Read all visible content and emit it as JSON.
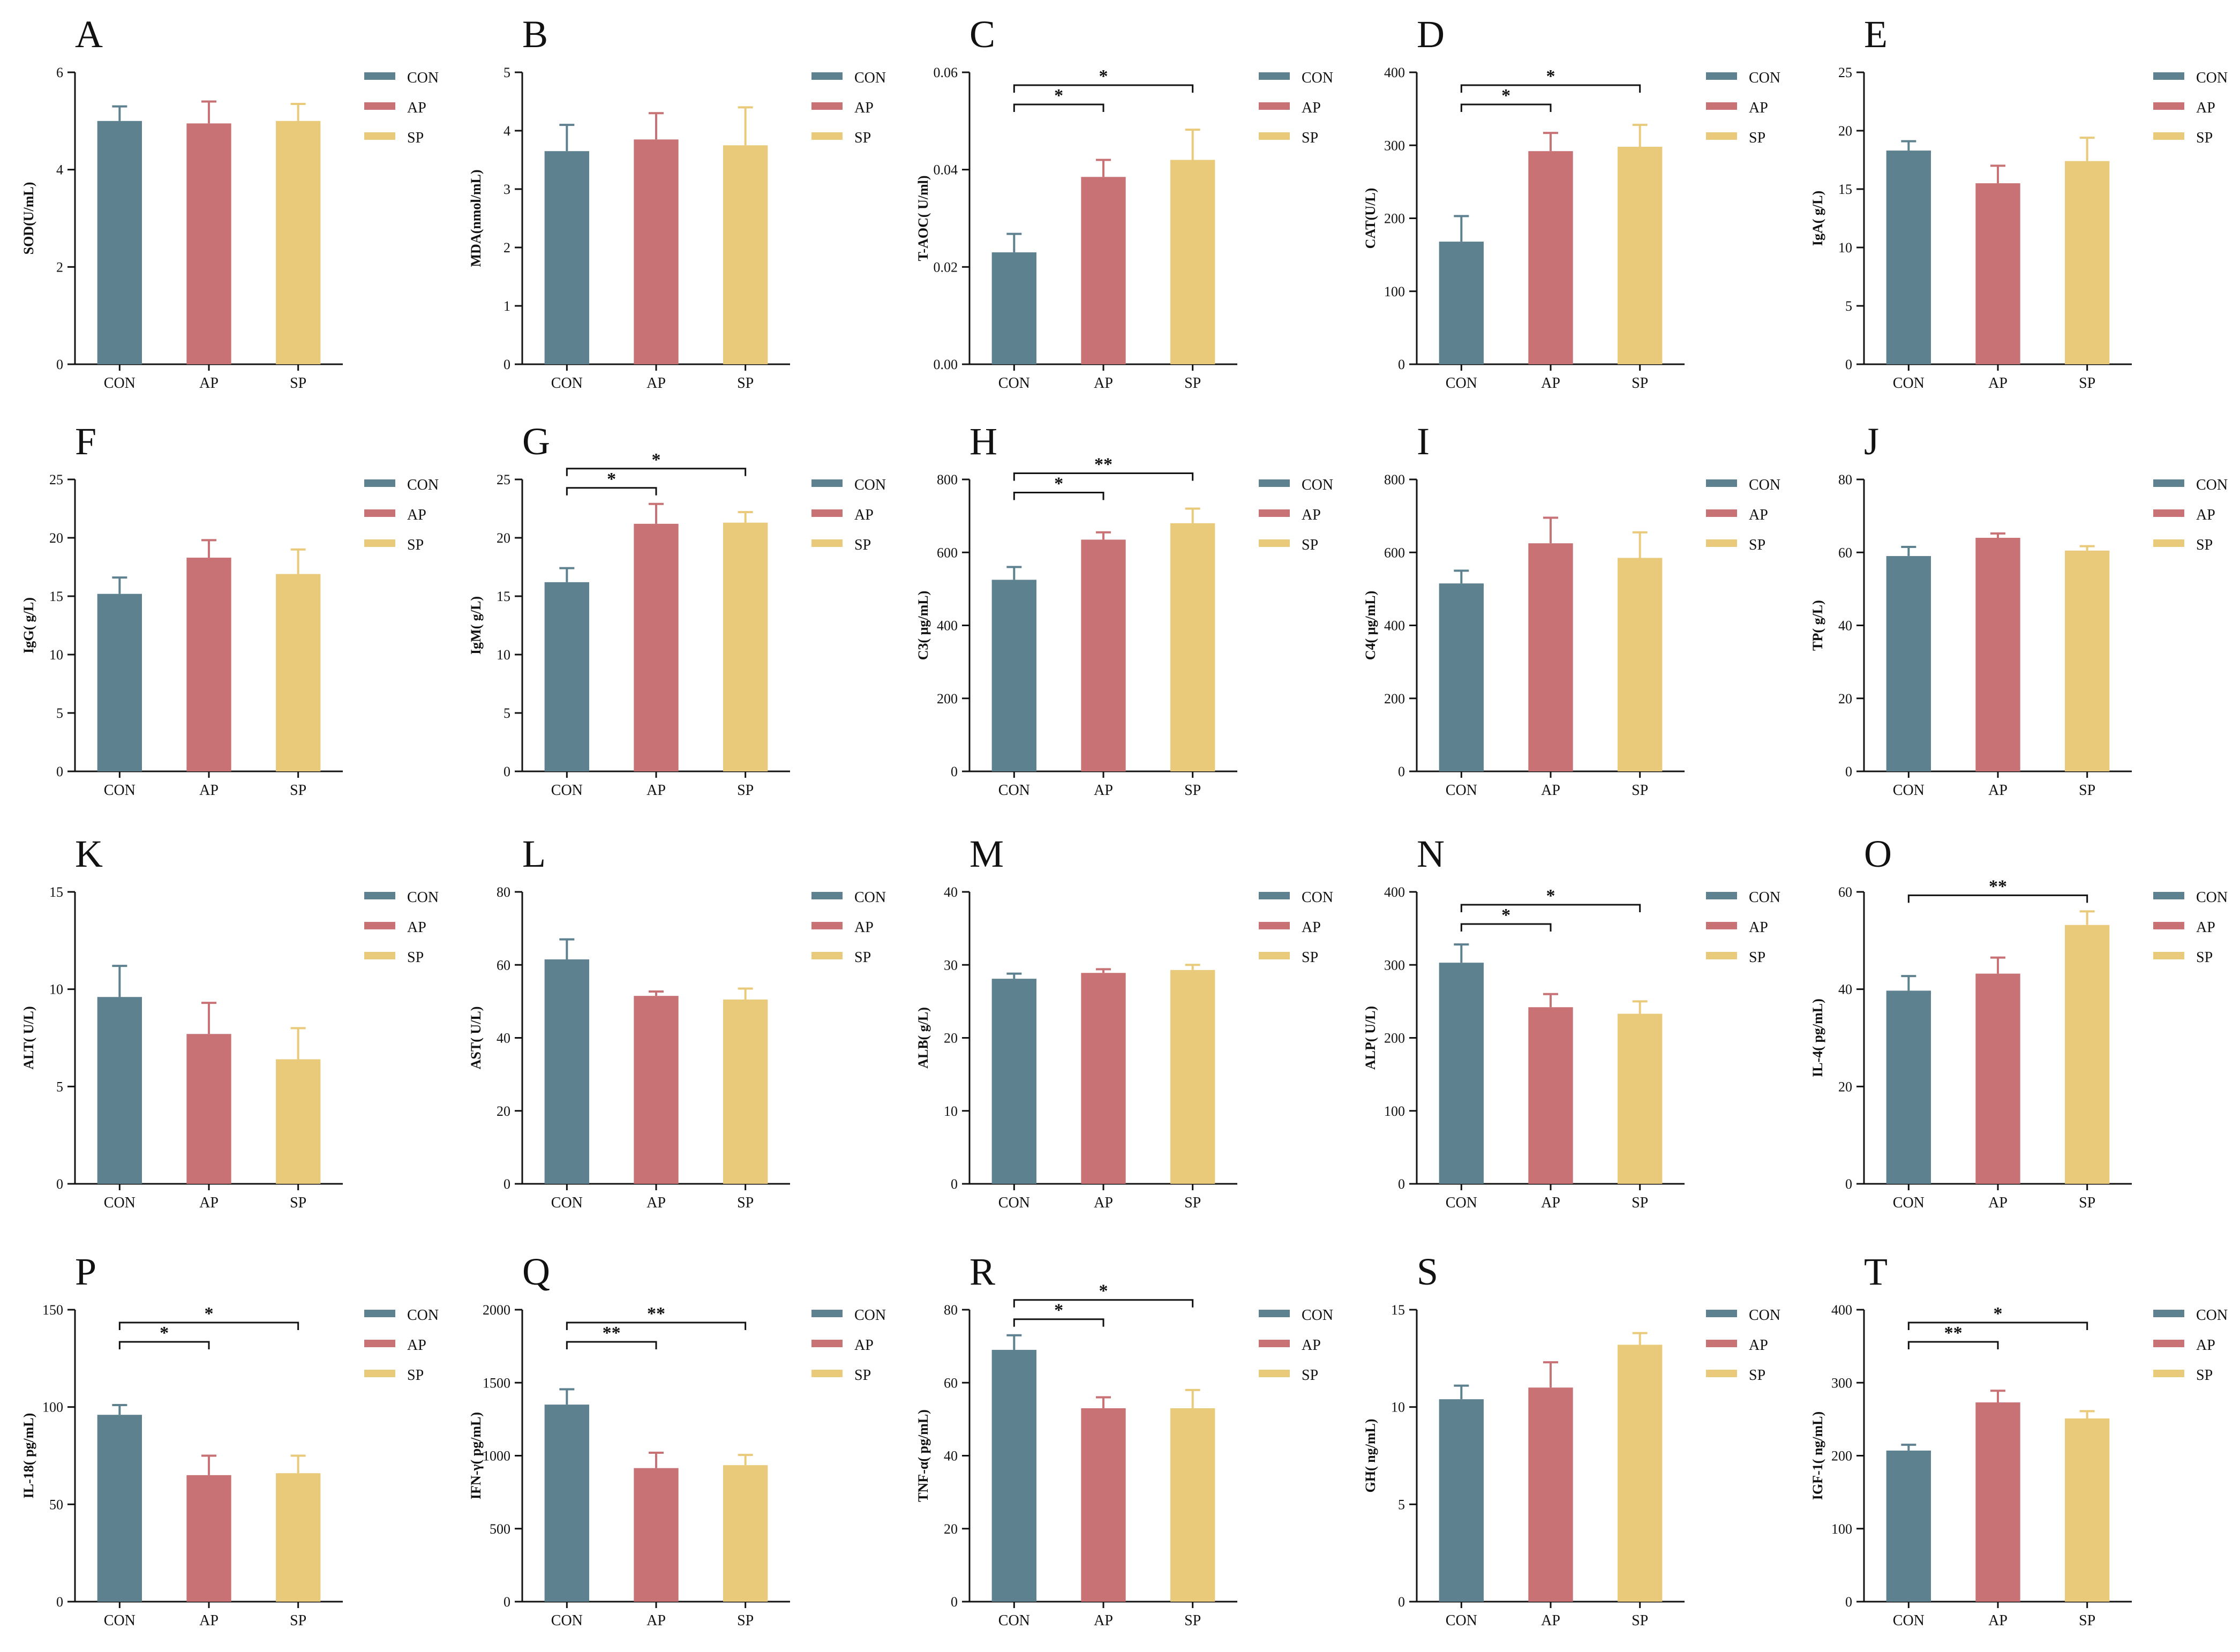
{
  "colors": {
    "CON": "#5e8190",
    "AP": "#c97276",
    "SP": "#e9ca7a",
    "axis": "#111111"
  },
  "legend": [
    "CON",
    "AP",
    "SP"
  ],
  "chart_data": [
    {
      "panel": "A",
      "type": "bar",
      "ylabel": "SOD(U/mL)",
      "categories": [
        "CON",
        "AP",
        "SP"
      ],
      "values": [
        5.0,
        4.95,
        5.0
      ],
      "errors": [
        0.3,
        0.45,
        0.35
      ],
      "ylim": [
        0,
        6
      ],
      "ticks": [
        "0",
        "2",
        "4",
        "6"
      ],
      "significance": []
    },
    {
      "panel": "B",
      "type": "bar",
      "ylabel": "MDA(nmol/mL)",
      "categories": [
        "CON",
        "AP",
        "SP"
      ],
      "values": [
        3.65,
        3.85,
        3.75
      ],
      "errors": [
        0.45,
        0.45,
        0.65
      ],
      "ylim": [
        0,
        5
      ],
      "ticks": [
        "0",
        "1",
        "2",
        "3",
        "4",
        "5"
      ],
      "significance": []
    },
    {
      "panel": "C",
      "type": "bar",
      "ylabel": "T-AOC( U/ml)",
      "categories": [
        "CON",
        "AP",
        "SP"
      ],
      "values": [
        0.023,
        0.0385,
        0.042
      ],
      "errors": [
        0.0038,
        0.0035,
        0.0062
      ],
      "ylim": [
        0,
        0.06
      ],
      "ticks": [
        "0.00",
        "0.02",
        "0.04",
        "0.06"
      ],
      "significance": [
        {
          "from": 0,
          "to": 1,
          "label": "*"
        },
        {
          "from": 0,
          "to": 2,
          "label": "*"
        }
      ]
    },
    {
      "panel": "D",
      "type": "bar",
      "ylabel": "CAT(U/L)",
      "categories": [
        "CON",
        "AP",
        "SP"
      ],
      "values": [
        168,
        292,
        298
      ],
      "errors": [
        35,
        25,
        30
      ],
      "ylim": [
        0,
        400
      ],
      "ticks": [
        "0",
        "100",
        "200",
        "300",
        "400"
      ],
      "significance": [
        {
          "from": 0,
          "to": 1,
          "label": "*"
        },
        {
          "from": 0,
          "to": 2,
          "label": "*"
        }
      ]
    },
    {
      "panel": "E",
      "type": "bar",
      "ylabel": "IgA( g/L)",
      "categories": [
        "CON",
        "AP",
        "SP"
      ],
      "values": [
        18.3,
        15.5,
        17.4
      ],
      "errors": [
        0.8,
        1.5,
        2.0
      ],
      "ylim": [
        0,
        25
      ],
      "ticks": [
        "0",
        "5",
        "10",
        "15",
        "20",
        "25"
      ],
      "significance": []
    },
    {
      "panel": "F",
      "type": "bar",
      "ylabel": "IgG( g/L)",
      "categories": [
        "CON",
        "AP",
        "SP"
      ],
      "values": [
        15.2,
        18.3,
        16.9
      ],
      "errors": [
        1.4,
        1.5,
        2.1
      ],
      "ylim": [
        0,
        25
      ],
      "ticks": [
        "0",
        "5",
        "10",
        "15",
        "20",
        "25"
      ],
      "significance": []
    },
    {
      "panel": "G",
      "type": "bar",
      "ylabel": "IgM( g/L)",
      "categories": [
        "CON",
        "AP",
        "SP"
      ],
      "values": [
        16.2,
        21.2,
        21.3
      ],
      "errors": [
        1.2,
        1.7,
        0.9
      ],
      "ylim": [
        0,
        25
      ],
      "ticks": [
        "0",
        "5",
        "10",
        "15",
        "20",
        "25"
      ],
      "significance": [
        {
          "from": 0,
          "to": 1,
          "label": "*"
        },
        {
          "from": 0,
          "to": 2,
          "label": "*"
        }
      ]
    },
    {
      "panel": "H",
      "type": "bar",
      "ylabel": "C3( μg/mL)",
      "categories": [
        "CON",
        "AP",
        "SP"
      ],
      "values": [
        525,
        635,
        680
      ],
      "errors": [
        35,
        20,
        40
      ],
      "ylim": [
        0,
        800
      ],
      "ticks": [
        "0",
        "200",
        "400",
        "600",
        "800"
      ],
      "significance": [
        {
          "from": 0,
          "to": 1,
          "label": "*"
        },
        {
          "from": 0,
          "to": 2,
          "label": "**"
        }
      ]
    },
    {
      "panel": "I",
      "type": "bar",
      "ylabel": "C4( μg/mL)",
      "categories": [
        "CON",
        "AP",
        "SP"
      ],
      "values": [
        515,
        625,
        585
      ],
      "errors": [
        35,
        70,
        70
      ],
      "ylim": [
        0,
        800
      ],
      "ticks": [
        "0",
        "200",
        "400",
        "600",
        "800"
      ],
      "significance": []
    },
    {
      "panel": "J",
      "type": "bar",
      "ylabel": "TP( g/L)",
      "categories": [
        "CON",
        "AP",
        "SP"
      ],
      "values": [
        59,
        64,
        60.5
      ],
      "errors": [
        2.5,
        1.2,
        1.2
      ],
      "ylim": [
        0,
        80
      ],
      "ticks": [
        "0",
        "20",
        "40",
        "60",
        "80"
      ],
      "significance": []
    },
    {
      "panel": "K",
      "type": "bar",
      "ylabel": "ALT( U/L)",
      "categories": [
        "CON",
        "AP",
        "SP"
      ],
      "values": [
        9.6,
        7.7,
        6.4
      ],
      "errors": [
        1.6,
        1.6,
        1.6
      ],
      "ylim": [
        0,
        15
      ],
      "ticks": [
        "0",
        "5",
        "10",
        "15"
      ],
      "significance": []
    },
    {
      "panel": "L",
      "type": "bar",
      "ylabel": "AST( U/L)",
      "categories": [
        "CON",
        "AP",
        "SP"
      ],
      "values": [
        61.5,
        51.5,
        50.5
      ],
      "errors": [
        5.5,
        1.2,
        3.0
      ],
      "ylim": [
        0,
        80
      ],
      "ticks": [
        "0",
        "20",
        "40",
        "60",
        "80"
      ],
      "significance": []
    },
    {
      "panel": "M",
      "type": "bar",
      "ylabel": "ALB( g/L)",
      "categories": [
        "CON",
        "AP",
        "SP"
      ],
      "values": [
        28.1,
        28.9,
        29.3
      ],
      "errors": [
        0.7,
        0.5,
        0.7
      ],
      "ylim": [
        0,
        40
      ],
      "ticks": [
        "0",
        "10",
        "20",
        "30",
        "40"
      ],
      "significance": []
    },
    {
      "panel": "N",
      "type": "bar",
      "ylabel": "ALP( U/L)",
      "categories": [
        "CON",
        "AP",
        "SP"
      ],
      "values": [
        303,
        242,
        233
      ],
      "errors": [
        25,
        18,
        17
      ],
      "ylim": [
        0,
        400
      ],
      "ticks": [
        "0",
        "100",
        "200",
        "300",
        "400"
      ],
      "significance": [
        {
          "from": 0,
          "to": 1,
          "label": "*"
        },
        {
          "from": 0,
          "to": 2,
          "label": "*"
        }
      ]
    },
    {
      "panel": "O",
      "type": "bar",
      "ylabel": "IL-4( pg/mL)",
      "categories": [
        "CON",
        "AP",
        "SP"
      ],
      "values": [
        39.7,
        43.2,
        53.2
      ],
      "errors": [
        3.0,
        3.3,
        2.8
      ],
      "ylim": [
        0,
        60
      ],
      "ticks": [
        "0",
        "20",
        "40",
        "60"
      ],
      "significance": [
        {
          "from": 0,
          "to": 2,
          "label": "**"
        }
      ]
    },
    {
      "panel": "P",
      "type": "bar",
      "ylabel": "IL-18( pg/mL)",
      "categories": [
        "CON",
        "AP",
        "SP"
      ],
      "values": [
        96,
        65,
        66
      ],
      "errors": [
        5,
        10,
        9
      ],
      "ylim": [
        0,
        150
      ],
      "ticks": [
        "0",
        "50",
        "100",
        "150"
      ],
      "significance": [
        {
          "from": 0,
          "to": 1,
          "label": "*"
        },
        {
          "from": 0,
          "to": 2,
          "label": "*"
        }
      ]
    },
    {
      "panel": "Q",
      "type": "bar",
      "ylabel": "IFN-γ( pg/mL)",
      "categories": [
        "CON",
        "AP",
        "SP"
      ],
      "values": [
        1350,
        915,
        935
      ],
      "errors": [
        105,
        105,
        70
      ],
      "ylim": [
        0,
        2000
      ],
      "ticks": [
        "0",
        "500",
        "1000",
        "1500",
        "2000"
      ],
      "significance": [
        {
          "from": 0,
          "to": 1,
          "label": "**"
        },
        {
          "from": 0,
          "to": 2,
          "label": "**"
        }
      ]
    },
    {
      "panel": "R",
      "type": "bar",
      "ylabel": "TNF-α( pg/mL)",
      "categories": [
        "CON",
        "AP",
        "SP"
      ],
      "values": [
        69,
        53,
        53
      ],
      "errors": [
        4,
        3,
        5
      ],
      "ylim": [
        0,
        80
      ],
      "ticks": [
        "0",
        "20",
        "40",
        "60",
        "80"
      ],
      "significance": [
        {
          "from": 0,
          "to": 1,
          "label": "*"
        },
        {
          "from": 0,
          "to": 2,
          "label": "*"
        }
      ]
    },
    {
      "panel": "S",
      "type": "bar",
      "ylabel": "GH( ng/mL)",
      "categories": [
        "CON",
        "AP",
        "SP"
      ],
      "values": [
        10.4,
        11.0,
        13.2
      ],
      "errors": [
        0.7,
        1.3,
        0.6
      ],
      "ylim": [
        0,
        15
      ],
      "ticks": [
        "0",
        "5",
        "10",
        "15"
      ],
      "significance": []
    },
    {
      "panel": "T",
      "type": "bar",
      "ylabel": "IGF-1( ng/mL)",
      "categories": [
        "CON",
        "AP",
        "SP"
      ],
      "values": [
        207,
        273,
        251
      ],
      "errors": [
        8,
        16,
        10
      ],
      "ylim": [
        0,
        400
      ],
      "ticks": [
        "0",
        "100",
        "200",
        "300",
        "400"
      ],
      "significance": [
        {
          "from": 0,
          "to": 1,
          "label": "**"
        },
        {
          "from": 0,
          "to": 2,
          "label": "*"
        }
      ]
    }
  ]
}
